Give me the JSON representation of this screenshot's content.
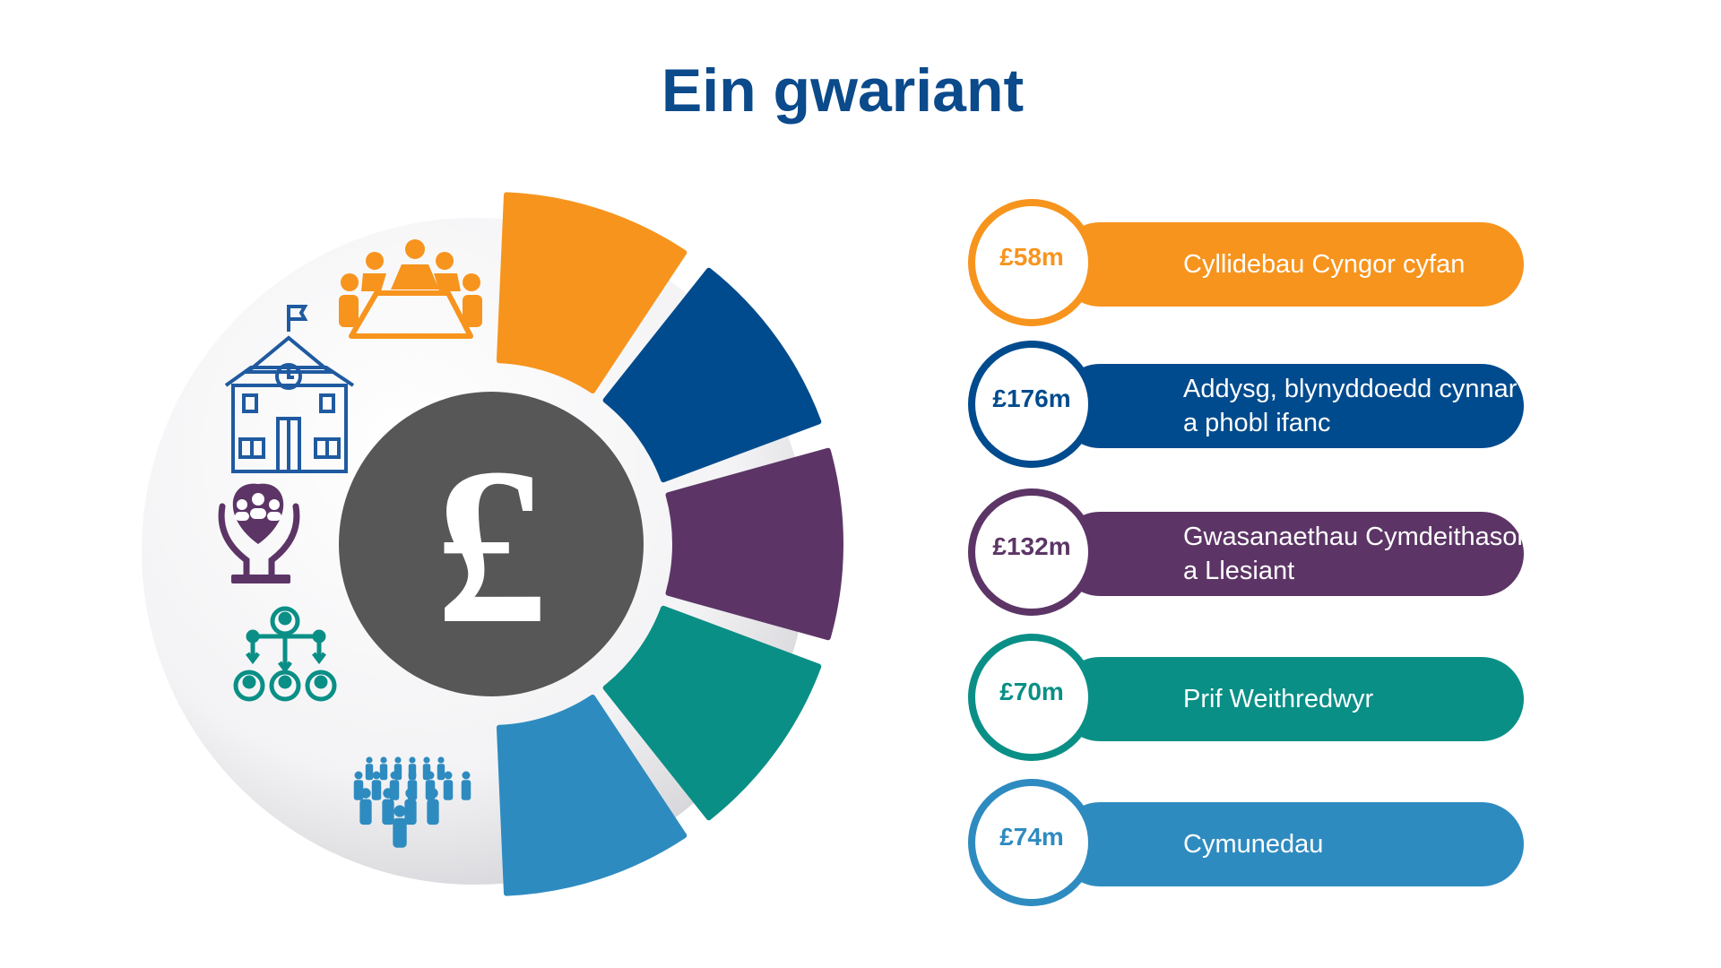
{
  "title": "Ein gwariant",
  "center_symbol": "£",
  "icons": [
    "meeting-table-icon",
    "school-building-icon",
    "heart-hands-family-icon",
    "hierarchy-people-icon",
    "crowd-icon",
    "pound-coin-icon"
  ],
  "segments": [
    {
      "amount": "£58m",
      "label": "Cyllidebau Cyngor cyfan",
      "color": "#f7941d"
    },
    {
      "amount": "£176m",
      "label": "Addysg, blynyddoedd cynnar\na phobl ifanc",
      "color": "#004b8d"
    },
    {
      "amount": "£132m",
      "label": "Gwasanaethau Cymdeithasol\na Llesiant",
      "color": "#5c3566"
    },
    {
      "amount": "£70m",
      "label": "Prif Weithredwyr",
      "color": "#0a8f86"
    },
    {
      "amount": "£74m",
      "label": "Cymunedau",
      "color": "#2e8bc0"
    }
  ]
}
